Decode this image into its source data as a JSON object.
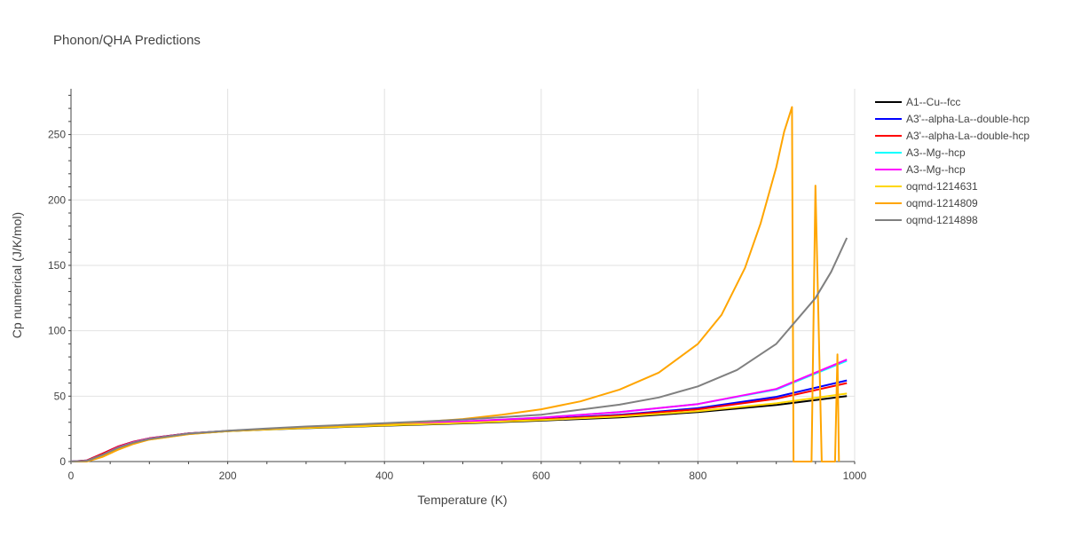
{
  "chart_data": {
    "type": "line",
    "title": "Phonon/QHA Predictions",
    "xlabel": "Temperature (K)",
    "ylabel": "Cp numerical (J/K/mol)",
    "xlim": [
      0,
      1000
    ],
    "ylim": [
      0,
      285
    ],
    "x_ticks": [
      0,
      200,
      400,
      600,
      800,
      1000
    ],
    "y_ticks": [
      0,
      50,
      100,
      150,
      200,
      250
    ],
    "grid": true,
    "legend_position": "right",
    "series": [
      {
        "name": "A1--Cu--fcc",
        "color": "#000000",
        "points": [
          [
            0,
            0
          ],
          [
            20,
            0.5
          ],
          [
            40,
            5
          ],
          [
            60,
            10.5
          ],
          [
            80,
            14.5
          ],
          [
            100,
            17.2
          ],
          [
            150,
            21.2
          ],
          [
            200,
            23.2
          ],
          [
            250,
            24.5
          ],
          [
            300,
            25.5
          ],
          [
            400,
            27.4
          ],
          [
            500,
            29.2
          ],
          [
            600,
            31.3
          ],
          [
            700,
            33.8
          ],
          [
            800,
            37.8
          ],
          [
            900,
            43.2
          ],
          [
            990,
            50
          ]
        ]
      },
      {
        "name": "A3'--alpha-La--double-hcp",
        "color": "#0000ff",
        "points": [
          [
            0,
            0
          ],
          [
            20,
            0.8
          ],
          [
            40,
            6
          ],
          [
            60,
            11.5
          ],
          [
            80,
            15.2
          ],
          [
            100,
            17.8
          ],
          [
            150,
            21.5
          ],
          [
            200,
            23.4
          ],
          [
            250,
            24.8
          ],
          [
            300,
            25.9
          ],
          [
            400,
            27.9
          ],
          [
            500,
            30
          ],
          [
            600,
            32.5
          ],
          [
            700,
            35.8
          ],
          [
            800,
            40.8
          ],
          [
            900,
            49.5
          ],
          [
            990,
            62
          ]
        ]
      },
      {
        "name": "A3'--alpha-La--double-hcp",
        "color": "#ff0000",
        "points": [
          [
            0,
            0
          ],
          [
            20,
            0.8
          ],
          [
            40,
            6
          ],
          [
            60,
            11.5
          ],
          [
            80,
            15.2
          ],
          [
            100,
            17.8
          ],
          [
            150,
            21.5
          ],
          [
            200,
            23.4
          ],
          [
            250,
            24.8
          ],
          [
            300,
            25.9
          ],
          [
            400,
            27.8
          ],
          [
            500,
            29.8
          ],
          [
            600,
            32.2
          ],
          [
            700,
            35.3
          ],
          [
            800,
            40
          ],
          [
            900,
            48
          ],
          [
            990,
            60
          ]
        ]
      },
      {
        "name": "A3--Mg--hcp",
        "color": "#00ffff",
        "points": [
          [
            0,
            0
          ],
          [
            20,
            0.5
          ],
          [
            40,
            5
          ],
          [
            60,
            10.8
          ],
          [
            80,
            14.8
          ],
          [
            100,
            17.5
          ],
          [
            150,
            21.4
          ],
          [
            200,
            23.4
          ],
          [
            250,
            24.9
          ],
          [
            300,
            26
          ],
          [
            400,
            28.2
          ],
          [
            500,
            30.6
          ],
          [
            600,
            33.6
          ],
          [
            700,
            37.8
          ],
          [
            800,
            44
          ],
          [
            900,
            55
          ],
          [
            990,
            77
          ]
        ]
      },
      {
        "name": "A3--Mg--hcp",
        "color": "#ff00ff",
        "points": [
          [
            0,
            0
          ],
          [
            20,
            0.5
          ],
          [
            40,
            5
          ],
          [
            60,
            10.8
          ],
          [
            80,
            14.8
          ],
          [
            100,
            17.5
          ],
          [
            150,
            21.4
          ],
          [
            200,
            23.4
          ],
          [
            250,
            24.9
          ],
          [
            300,
            26
          ],
          [
            400,
            28.2
          ],
          [
            500,
            30.6
          ],
          [
            600,
            33.6
          ],
          [
            700,
            37.8
          ],
          [
            800,
            44
          ],
          [
            900,
            55.5
          ],
          [
            990,
            78
          ]
        ]
      },
      {
        "name": "oqmd-1214631",
        "color": "#ffd700",
        "points": [
          [
            0,
            0
          ],
          [
            20,
            0.2
          ],
          [
            40,
            4
          ],
          [
            60,
            9.5
          ],
          [
            80,
            13.8
          ],
          [
            100,
            16.8
          ],
          [
            150,
            21
          ],
          [
            200,
            23.2
          ],
          [
            250,
            24.6
          ],
          [
            300,
            25.7
          ],
          [
            400,
            27.6
          ],
          [
            500,
            29.5
          ],
          [
            600,
            31.7
          ],
          [
            700,
            34.5
          ],
          [
            800,
            38.5
          ],
          [
            900,
            44.5
          ],
          [
            990,
            52
          ]
        ]
      },
      {
        "name": "oqmd-1214809",
        "color": "#ffa500",
        "points": [
          [
            0,
            0
          ],
          [
            20,
            0
          ],
          [
            40,
            3.5
          ],
          [
            60,
            9
          ],
          [
            80,
            13.5
          ],
          [
            100,
            16.8
          ],
          [
            150,
            21
          ],
          [
            200,
            23.4
          ],
          [
            250,
            25
          ],
          [
            300,
            26.3
          ],
          [
            350,
            27.5
          ],
          [
            400,
            28.7
          ],
          [
            450,
            30.3
          ],
          [
            500,
            32.5
          ],
          [
            550,
            35.8
          ],
          [
            600,
            40
          ],
          [
            650,
            46
          ],
          [
            700,
            55
          ],
          [
            750,
            68
          ],
          [
            800,
            90
          ],
          [
            830,
            112
          ],
          [
            860,
            148
          ],
          [
            880,
            182
          ],
          [
            900,
            225
          ],
          [
            910,
            252
          ],
          [
            920,
            271
          ],
          [
            922,
            0
          ],
          [
            945,
            0
          ],
          [
            950,
            211
          ],
          [
            958,
            0
          ],
          [
            975,
            0
          ],
          [
            978,
            82
          ],
          [
            980,
            0
          ]
        ]
      },
      {
        "name": "oqmd-1214898",
        "color": "#808080",
        "points": [
          [
            0,
            0
          ],
          [
            20,
            0.5
          ],
          [
            40,
            5
          ],
          [
            60,
            10.5
          ],
          [
            80,
            14.5
          ],
          [
            100,
            17.3
          ],
          [
            150,
            21.4
          ],
          [
            200,
            23.6
          ],
          [
            250,
            25.3
          ],
          [
            300,
            26.8
          ],
          [
            400,
            29.3
          ],
          [
            500,
            32
          ],
          [
            600,
            35.8
          ],
          [
            700,
            43.5
          ],
          [
            750,
            49
          ],
          [
            800,
            57.5
          ],
          [
            850,
            70
          ],
          [
            900,
            90
          ],
          [
            950,
            125
          ],
          [
            970,
            145
          ],
          [
            990,
            171
          ]
        ]
      }
    ]
  }
}
